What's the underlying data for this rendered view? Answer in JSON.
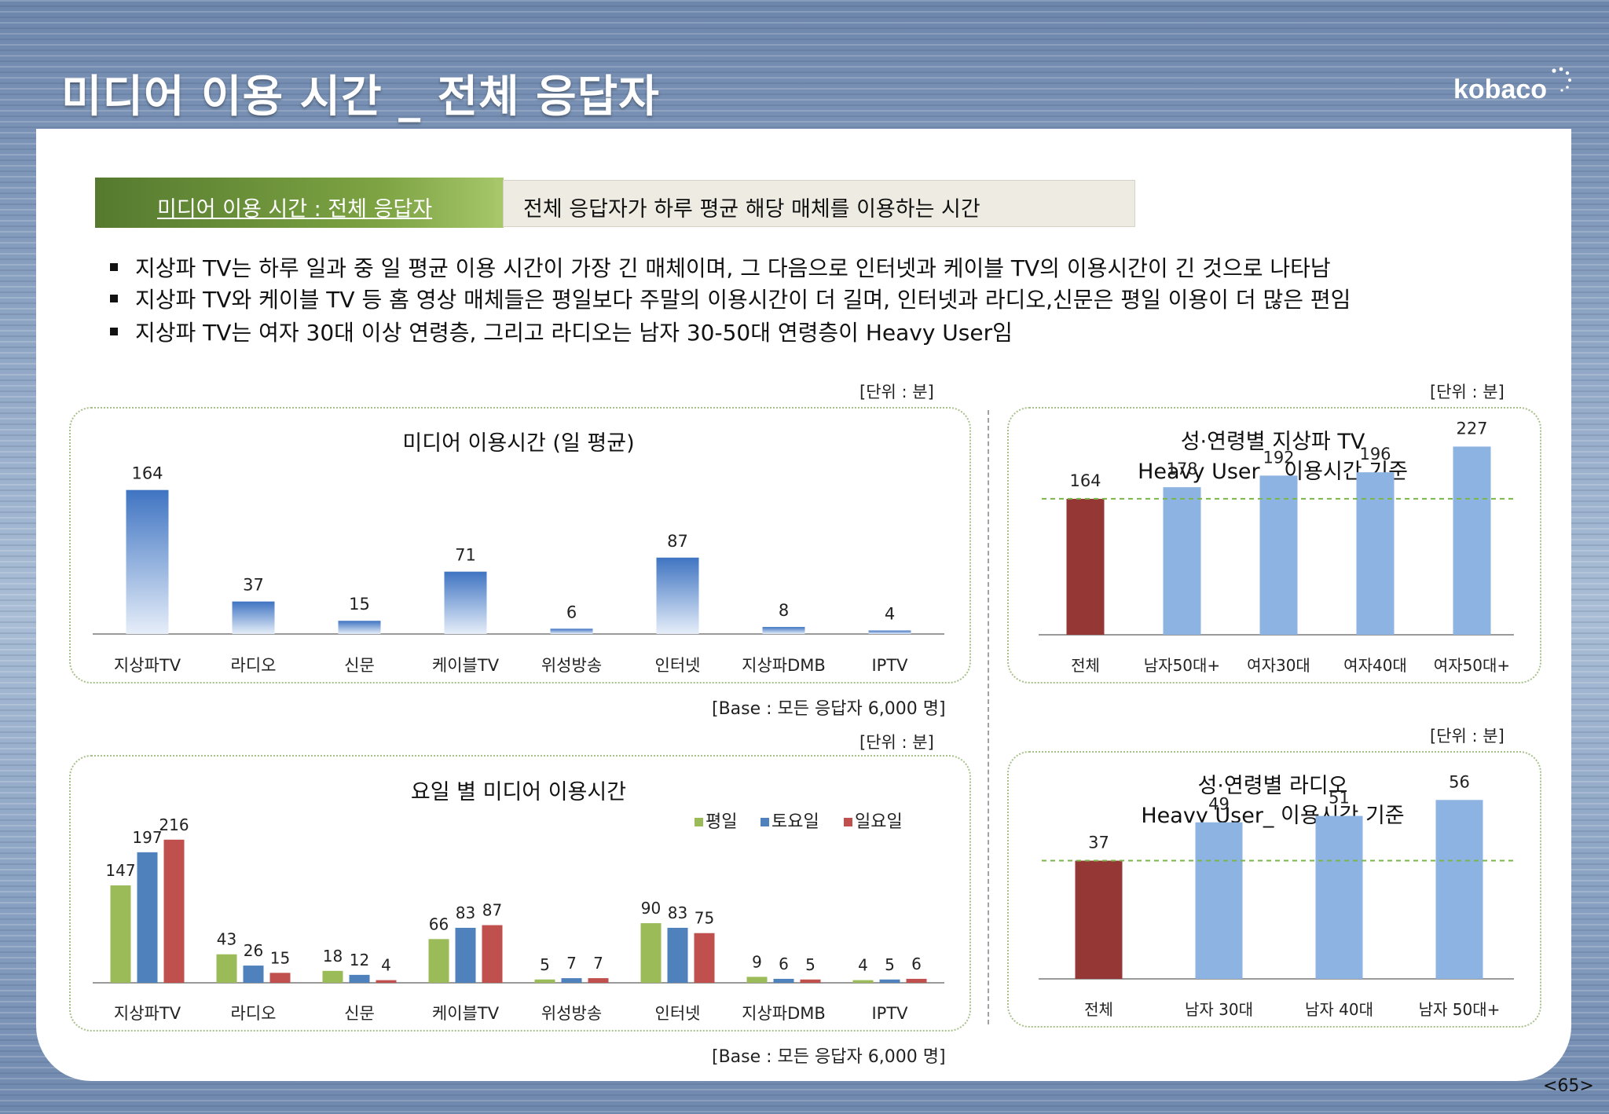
{
  "header": {
    "title": "미디어 이용 시간 _ 전체 응답자",
    "logo_text": "kobaco"
  },
  "banner": {
    "left_label": "미디어 이용 시간 : 전체 응답자",
    "right_label": "전체 응답자가 하루 평균 해당 매체를 이용하는 시간"
  },
  "bullets": [
    "지상파 TV는 하루 일과 중 일 평균 이용 시간이 가장 긴 매체이며, 그 다음으로 인터넷과 케이블 TV의 이용시간이 긴 것으로 나타남",
    "지상파 TV와 케이블 TV 등 홈 영상 매체들은 평일보다 주말의 이용시간이 더 길며, 인터넷과 라디오,신문은 평일 이용이 더 많은 편임",
    "지상파 TV는 여자 30대 이상 연령층, 그리고 라디오는 남자 30-50대 연령층이 Heavy User임"
  ],
  "unit_label": "[단위 : 분]",
  "base_label": "[Base : 모든 응답자 6,000 명]",
  "page_number": "<65>",
  "colors": {
    "weekday": "#9bbb59",
    "saturday": "#4f81bd",
    "sunday": "#c0504d",
    "total_bar": "#953735",
    "heavy_bar": "#8db3e2",
    "reference_line": "#7ab648"
  },
  "chart_data": [
    {
      "type": "bar",
      "title": "미디어 이용시간 (일 평균)",
      "categories": [
        "지상파TV",
        "라디오",
        "신문",
        "케이블TV",
        "위성방송",
        "인터넷",
        "지상파DMB",
        "IPTV"
      ],
      "values": [
        164,
        37,
        15,
        71,
        6,
        87,
        8,
        4
      ],
      "ylim": [
        0,
        170
      ],
      "grid": false,
      "legend": "none"
    },
    {
      "type": "bar",
      "title": "요일 별 미디어 이용시간",
      "categories": [
        "지상파TV",
        "라디오",
        "신문",
        "케이블TV",
        "위성방송",
        "인터넷",
        "지상파DMB",
        "IPTV"
      ],
      "series": [
        {
          "name": "평일",
          "values": [
            147,
            43,
            18,
            66,
            5,
            90,
            9,
            4
          ]
        },
        {
          "name": "토요일",
          "values": [
            197,
            26,
            12,
            83,
            7,
            83,
            6,
            5
          ]
        },
        {
          "name": "일요일",
          "values": [
            216,
            15,
            4,
            87,
            7,
            75,
            5,
            6
          ]
        }
      ],
      "ylim": [
        0,
        230
      ],
      "grid": false,
      "legend": "top-right"
    },
    {
      "type": "bar",
      "title": "성·연령별 지상파 TV\nHeavy User _ 이용시간 기준",
      "title_lines": [
        "성·연령별 지상파 TV",
        "Heavy User _ 이용시간 기준"
      ],
      "categories": [
        "전체",
        "남자50대+",
        "여자30대",
        "여자40대",
        "여자50대+"
      ],
      "values": [
        164,
        178,
        192,
        196,
        227
      ],
      "reference_line": 164,
      "ylim": [
        0,
        235
      ],
      "grid": false,
      "legend": "none"
    },
    {
      "type": "bar",
      "title": "성·연령별 라디오\nHeavy User_ 이용시간 기준",
      "title_lines": [
        "성·연령별 라디오",
        "Heavy User_ 이용시간 기준"
      ],
      "categories": [
        "전체",
        "남자 30대",
        "남자 40대",
        "남자 50대+"
      ],
      "values": [
        37,
        49,
        51,
        56
      ],
      "reference_line": 37,
      "ylim": [
        0,
        60
      ],
      "grid": false,
      "legend": "none"
    }
  ]
}
